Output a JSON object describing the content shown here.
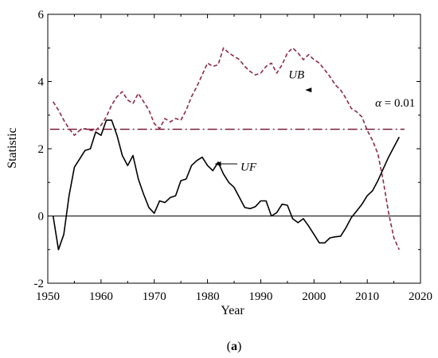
{
  "chart_data": {
    "type": "line",
    "xlabel": "Year",
    "ylabel": "Statistic",
    "xlim": [
      1950,
      2020
    ],
    "ylim": [
      -2,
      6
    ],
    "xticks": [
      1950,
      1960,
      1970,
      1980,
      1990,
      2000,
      2010,
      2020
    ],
    "yticks": [
      -2,
      0,
      2,
      4,
      6
    ],
    "caption": {
      "open": "(",
      "letter": "a",
      "close": ")"
    },
    "x": [
      1951,
      1952,
      1953,
      1954,
      1955,
      1956,
      1957,
      1958,
      1959,
      1960,
      1961,
      1962,
      1963,
      1964,
      1965,
      1966,
      1967,
      1968,
      1969,
      1970,
      1971,
      1972,
      1973,
      1974,
      1975,
      1976,
      1977,
      1978,
      1979,
      1980,
      1981,
      1982,
      1983,
      1984,
      1985,
      1986,
      1987,
      1988,
      1989,
      1990,
      1991,
      1992,
      1993,
      1994,
      1995,
      1996,
      1997,
      1998,
      1999,
      2000,
      2001,
      2002,
      2003,
      2004,
      2005,
      2006,
      2007,
      2008,
      2009,
      2010,
      2011,
      2012,
      2013,
      2014,
      2015,
      2016
    ],
    "series": [
      {
        "name": "UF",
        "style": "solid",
        "color": "#000000",
        "values": [
          0.0,
          -1.0,
          -0.55,
          0.6,
          1.45,
          1.7,
          1.95,
          2.0,
          2.5,
          2.4,
          2.85,
          2.85,
          2.4,
          1.8,
          1.5,
          1.8,
          1.1,
          0.65,
          0.25,
          0.08,
          0.45,
          0.4,
          0.55,
          0.6,
          1.05,
          1.1,
          1.5,
          1.65,
          1.75,
          1.5,
          1.35,
          1.6,
          1.25,
          1.0,
          0.85,
          0.55,
          0.25,
          0.22,
          0.28,
          0.45,
          0.45,
          0.0,
          0.1,
          0.35,
          0.32,
          -0.08,
          -0.2,
          -0.08,
          -0.3,
          -0.55,
          -0.8,
          -0.8,
          -0.65,
          -0.62,
          -0.6,
          -0.35,
          -0.05,
          0.15,
          0.35,
          0.6,
          0.75,
          1.05,
          1.4,
          1.75,
          2.05,
          2.35
        ]
      },
      {
        "name": "UB",
        "style": "dashed",
        "color": "#8b2a4a",
        "values": [
          3.4,
          3.15,
          2.85,
          2.6,
          2.4,
          2.55,
          2.6,
          2.55,
          2.55,
          2.7,
          2.95,
          3.3,
          3.55,
          3.7,
          3.45,
          3.35,
          3.65,
          3.4,
          3.15,
          2.75,
          2.6,
          2.9,
          2.8,
          2.9,
          2.85,
          3.15,
          3.55,
          3.85,
          4.2,
          4.55,
          4.45,
          4.5,
          5.0,
          4.85,
          4.75,
          4.65,
          4.45,
          4.3,
          4.2,
          4.25,
          4.45,
          4.55,
          4.25,
          4.5,
          4.85,
          5.0,
          4.85,
          4.65,
          4.8,
          4.65,
          4.55,
          4.35,
          4.15,
          3.9,
          3.75,
          3.5,
          3.2,
          3.1,
          2.95,
          2.55,
          2.25,
          1.85,
          1.05,
          0.1,
          -0.65,
          -1.0
        ]
      }
    ],
    "reference_lines": [
      {
        "name": "alpha",
        "y": 2.58,
        "style": "dash-dot",
        "color": "#7a1f3d"
      },
      {
        "name": "zero",
        "y": 0,
        "style": "solid",
        "color": "#000000"
      }
    ],
    "annotations": [
      {
        "label_prefix": "α",
        "label_rest": " = 0.01",
        "x": 2011.5,
        "y": 3.25
      },
      {
        "label": "UB",
        "x": 1995.2,
        "y": 4.1,
        "arrow_to": [
          1998.5,
          3.75
        ]
      },
      {
        "label": "UF",
        "x": 1986.2,
        "y": 1.35,
        "arrow_to": [
          1981.5,
          1.55
        ]
      }
    ]
  }
}
